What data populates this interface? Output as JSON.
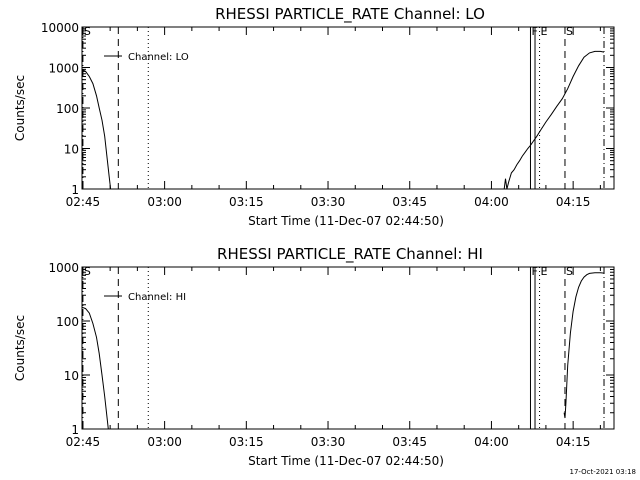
{
  "timestamp": "17-Oct-2021 03:18",
  "chart_data": [
    {
      "type": "line",
      "title": "RHESSI PARTICLE_RATE Channel: LO",
      "xlabel": "Start Time (11-Dec-07 02:44:50)",
      "ylabel": "Counts/sec",
      "y_scale": "log",
      "ylim": [
        1,
        10000
      ],
      "xlim": [
        "02:44:50",
        "04:22:30"
      ],
      "y_ticks": [
        "1",
        "10",
        "100",
        "1000",
        "10000"
      ],
      "x_ticks": [
        "02:45",
        "03:00",
        "03:15",
        "03:30",
        "03:45",
        "04:00",
        "04:15"
      ],
      "legend": {
        "label": "Channel: LO",
        "position": "top-left"
      },
      "event_markers": [
        {
          "time": "02:45:00",
          "style": "dash-dot",
          "label": "S"
        },
        {
          "time": "02:51:30",
          "style": "dashed",
          "label": ""
        },
        {
          "time": "02:57:00",
          "style": "dotted",
          "label": ""
        },
        {
          "time": "04:07:10",
          "style": "solid",
          "label": "F"
        },
        {
          "time": "04:08:00",
          "style": "solid",
          "label": ""
        },
        {
          "time": "04:08:50",
          "style": "dotted",
          "label": "E"
        },
        {
          "time": "04:13:30",
          "style": "dashed",
          "label": "S"
        },
        {
          "time": "04:20:40",
          "style": "dash-dot",
          "label": ""
        }
      ],
      "series": [
        {
          "points": [
            [
              "02:44:50",
              900
            ],
            [
              "02:45:30",
              800
            ],
            [
              "02:46:10",
              600
            ],
            [
              "02:46:50",
              400
            ],
            [
              "02:47:30",
              200
            ],
            [
              "02:48:00",
              100
            ],
            [
              "02:48:30",
              50
            ],
            [
              "02:49:00",
              20
            ],
            [
              "02:49:30",
              5
            ],
            [
              "02:49:50",
              2
            ],
            [
              "02:50:05",
              1
            ]
          ]
        },
        {
          "points": [
            [
              "04:02:20",
              1
            ],
            [
              "04:02:35",
              1.8
            ],
            [
              "04:02:50",
              1
            ],
            [
              "04:03:10",
              1.5
            ],
            [
              "04:03:40",
              2.5
            ],
            [
              "04:04:10",
              3
            ],
            [
              "04:04:40",
              4
            ],
            [
              "04:05:10",
              5
            ],
            [
              "04:05:40",
              6.5
            ],
            [
              "04:06:10",
              8
            ],
            [
              "04:06:40",
              10
            ],
            [
              "04:07:10",
              12
            ],
            [
              "04:07:40",
              15
            ],
            [
              "04:08:20",
              20
            ],
            [
              "04:09:00",
              28
            ],
            [
              "04:10:00",
              45
            ],
            [
              "04:11:00",
              70
            ],
            [
              "04:12:00",
              110
            ],
            [
              "04:13:00",
              170
            ],
            [
              "04:14:00",
              300
            ],
            [
              "04:15:00",
              600
            ],
            [
              "04:16:00",
              1100
            ],
            [
              "04:17:00",
              1800
            ],
            [
              "04:18:00",
              2300
            ],
            [
              "04:19:00",
              2500
            ],
            [
              "04:20:00",
              2500
            ],
            [
              "04:20:40",
              2400
            ]
          ]
        }
      ]
    },
    {
      "type": "line",
      "title": "RHESSI PARTICLE_RATE Channel: HI",
      "xlabel": "Start Time (11-Dec-07 02:44:50)",
      "ylabel": "Counts/sec",
      "y_scale": "log",
      "ylim": [
        1,
        1000
      ],
      "xlim": [
        "02:44:50",
        "04:22:30"
      ],
      "y_ticks": [
        "1",
        "10",
        "100",
        "1000"
      ],
      "x_ticks": [
        "02:45",
        "03:00",
        "03:15",
        "03:30",
        "03:45",
        "04:00",
        "04:15"
      ],
      "legend": {
        "label": "Channel: HI",
        "position": "top-left"
      },
      "event_markers": [
        {
          "time": "02:45:00",
          "style": "dash-dot",
          "label": "S"
        },
        {
          "time": "02:51:30",
          "style": "dashed",
          "label": ""
        },
        {
          "time": "02:57:00",
          "style": "dotted",
          "label": ""
        },
        {
          "time": "04:07:10",
          "style": "solid",
          "label": "F"
        },
        {
          "time": "04:08:00",
          "style": "solid",
          "label": ""
        },
        {
          "time": "04:08:50",
          "style": "dotted",
          "label": "E"
        },
        {
          "time": "04:13:30",
          "style": "dashed",
          "label": "S"
        },
        {
          "time": "04:20:40",
          "style": "dash-dot",
          "label": ""
        }
      ],
      "series": [
        {
          "points": [
            [
              "02:44:50",
              180
            ],
            [
              "02:45:30",
              170
            ],
            [
              "02:46:10",
              140
            ],
            [
              "02:46:50",
              90
            ],
            [
              "02:47:30",
              50
            ],
            [
              "02:48:00",
              25
            ],
            [
              "02:48:30",
              10
            ],
            [
              "02:49:00",
              4
            ],
            [
              "02:49:20",
              2
            ],
            [
              "02:49:40",
              1
            ]
          ]
        },
        {
          "points": [
            [
              "04:13:20",
              2
            ],
            [
              "04:13:30",
              1.6
            ],
            [
              "04:13:40",
              3
            ],
            [
              "04:14:00",
              15
            ],
            [
              "04:14:30",
              60
            ],
            [
              "04:15:00",
              150
            ],
            [
              "04:15:30",
              280
            ],
            [
              "04:16:00",
              420
            ],
            [
              "04:16:30",
              550
            ],
            [
              "04:17:00",
              650
            ],
            [
              "04:17:30",
              720
            ],
            [
              "04:18:00",
              760
            ],
            [
              "04:19:00",
              780
            ],
            [
              "04:20:00",
              780
            ],
            [
              "04:20:40",
              770
            ]
          ]
        }
      ]
    }
  ]
}
